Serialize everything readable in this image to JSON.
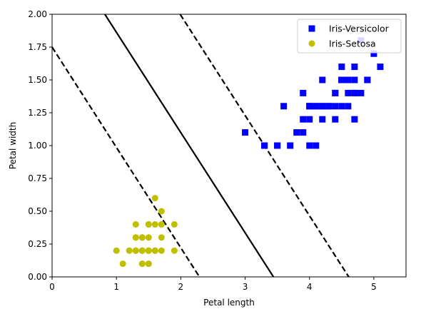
{
  "chart_data": {
    "type": "scatter",
    "xlabel": "Petal length",
    "ylabel": "Petal width",
    "xlim": [
      0,
      5.5
    ],
    "ylim": [
      0,
      2.0
    ],
    "xticks": [
      0,
      1,
      2,
      3,
      4,
      5
    ],
    "xtick_labels": [
      "0",
      "1",
      "2",
      "3",
      "4",
      "5"
    ],
    "yticks": [
      0,
      0.25,
      0.5,
      0.75,
      1.0,
      1.25,
      1.5,
      1.75,
      2.0
    ],
    "ytick_labels": [
      "0.00",
      "0.25",
      "0.50",
      "0.75",
      "1.00",
      "1.25",
      "1.50",
      "1.75",
      "2.00"
    ],
    "grid": false,
    "legend_position": "upper-right",
    "series": [
      {
        "name": "Iris-Versicolor",
        "marker": "square",
        "color": "#0000ff",
        "points": [
          [
            4.7,
            1.4
          ],
          [
            4.5,
            1.5
          ],
          [
            4.9,
            1.5
          ],
          [
            4.0,
            1.3
          ],
          [
            4.6,
            1.5
          ],
          [
            4.5,
            1.3
          ],
          [
            4.7,
            1.6
          ],
          [
            3.3,
            1.0
          ],
          [
            4.6,
            1.3
          ],
          [
            3.9,
            1.4
          ],
          [
            3.5,
            1.0
          ],
          [
            4.2,
            1.5
          ],
          [
            4.0,
            1.0
          ],
          [
            4.7,
            1.4
          ],
          [
            3.6,
            1.3
          ],
          [
            4.4,
            1.4
          ],
          [
            4.5,
            1.5
          ],
          [
            4.1,
            1.0
          ],
          [
            4.5,
            1.5
          ],
          [
            3.9,
            1.1
          ],
          [
            4.8,
            1.8
          ],
          [
            4.0,
            1.3
          ],
          [
            4.9,
            1.5
          ],
          [
            4.7,
            1.2
          ],
          [
            4.3,
            1.3
          ],
          [
            4.4,
            1.4
          ],
          [
            4.8,
            1.4
          ],
          [
            5.0,
            1.7
          ],
          [
            4.5,
            1.5
          ],
          [
            3.5,
            1.0
          ],
          [
            3.8,
            1.1
          ],
          [
            3.7,
            1.0
          ],
          [
            3.9,
            1.2
          ],
          [
            5.1,
            1.6
          ],
          [
            4.5,
            1.5
          ],
          [
            4.5,
            1.6
          ],
          [
            4.7,
            1.5
          ],
          [
            4.4,
            1.3
          ],
          [
            4.1,
            1.3
          ],
          [
            4.0,
            1.3
          ],
          [
            4.4,
            1.2
          ],
          [
            4.6,
            1.4
          ],
          [
            4.0,
            1.2
          ],
          [
            3.3,
            1.0
          ],
          [
            4.2,
            1.3
          ],
          [
            4.2,
            1.2
          ],
          [
            4.2,
            1.3
          ],
          [
            4.3,
            1.3
          ],
          [
            3.0,
            1.1
          ],
          [
            4.1,
            1.3
          ]
        ]
      },
      {
        "name": "Iris-Setosa",
        "marker": "circle",
        "color": "#bfbf00",
        "points": [
          [
            1.4,
            0.2
          ],
          [
            1.4,
            0.2
          ],
          [
            1.3,
            0.2
          ],
          [
            1.5,
            0.2
          ],
          [
            1.4,
            0.2
          ],
          [
            1.7,
            0.4
          ],
          [
            1.4,
            0.3
          ],
          [
            1.5,
            0.2
          ],
          [
            1.4,
            0.2
          ],
          [
            1.5,
            0.1
          ],
          [
            1.5,
            0.2
          ],
          [
            1.6,
            0.2
          ],
          [
            1.4,
            0.1
          ],
          [
            1.1,
            0.1
          ],
          [
            1.2,
            0.2
          ],
          [
            1.5,
            0.4
          ],
          [
            1.3,
            0.4
          ],
          [
            1.4,
            0.3
          ],
          [
            1.7,
            0.3
          ],
          [
            1.5,
            0.3
          ],
          [
            1.7,
            0.2
          ],
          [
            1.5,
            0.4
          ],
          [
            1.0,
            0.2
          ],
          [
            1.7,
            0.5
          ],
          [
            1.9,
            0.2
          ],
          [
            1.6,
            0.2
          ],
          [
            1.6,
            0.4
          ],
          [
            1.5,
            0.2
          ],
          [
            1.4,
            0.2
          ],
          [
            1.6,
            0.2
          ],
          [
            1.6,
            0.2
          ],
          [
            1.5,
            0.4
          ],
          [
            1.5,
            0.1
          ],
          [
            1.4,
            0.2
          ],
          [
            1.5,
            0.2
          ],
          [
            1.2,
            0.2
          ],
          [
            1.3,
            0.2
          ],
          [
            1.4,
            0.1
          ],
          [
            1.3,
            0.2
          ],
          [
            1.5,
            0.2
          ],
          [
            1.3,
            0.3
          ],
          [
            1.3,
            0.3
          ],
          [
            1.3,
            0.2
          ],
          [
            1.6,
            0.6
          ],
          [
            1.9,
            0.4
          ],
          [
            1.4,
            0.3
          ],
          [
            1.6,
            0.2
          ],
          [
            1.4,
            0.2
          ],
          [
            1.5,
            0.2
          ],
          [
            1.4,
            0.2
          ]
        ]
      }
    ],
    "lines": [
      {
        "name": "decision-boundary",
        "style": "solid",
        "color": "#000000",
        "points": [
          [
            0.82,
            2.0
          ],
          [
            3.44,
            0.0
          ]
        ]
      },
      {
        "name": "margin-upper",
        "style": "dashed",
        "color": "#000000",
        "points": [
          [
            1.99,
            2.0
          ],
          [
            4.61,
            0.0
          ]
        ]
      },
      {
        "name": "margin-lower",
        "style": "dashed",
        "color": "#000000",
        "points": [
          [
            0.0,
            1.75
          ],
          [
            2.29,
            0.0
          ]
        ]
      }
    ]
  }
}
